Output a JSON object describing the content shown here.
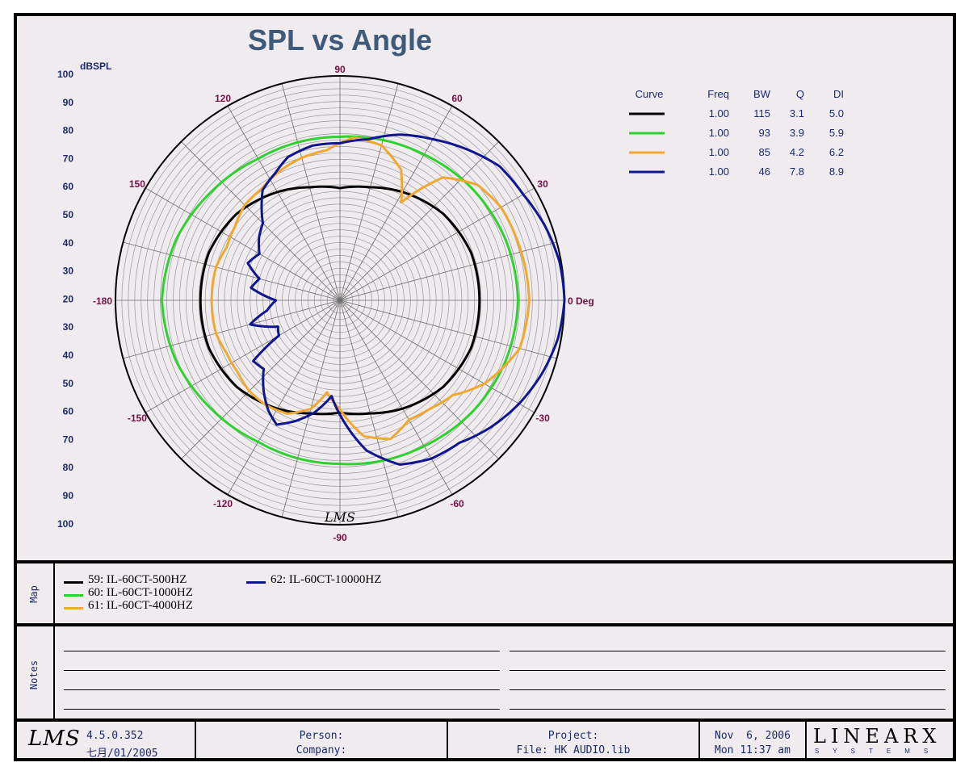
{
  "chart_data": {
    "type": "polar",
    "title": "SPL vs Angle",
    "radial_unit": "dBSPL",
    "radial_scale_labels": [
      "100",
      "90",
      "80",
      "70",
      "60",
      "50",
      "40",
      "30",
      "20",
      "30",
      "40",
      "50",
      "60",
      "70",
      "80",
      "90",
      "100"
    ],
    "angle_labels": [
      {
        "deg": 0,
        "text": "0 Deg"
      },
      {
        "deg": 30,
        "text": "30"
      },
      {
        "deg": 60,
        "text": "60"
      },
      {
        "deg": 90,
        "text": "90"
      },
      {
        "deg": 120,
        "text": "120"
      },
      {
        "deg": 150,
        "text": "150"
      },
      {
        "deg": 180,
        "text": "-180"
      },
      {
        "deg": -150,
        "text": "-150"
      },
      {
        "deg": -120,
        "text": "-120"
      },
      {
        "deg": -90,
        "text": "-90"
      },
      {
        "deg": -60,
        "text": "-60"
      },
      {
        "deg": -30,
        "text": "-30"
      }
    ],
    "table": {
      "headers": [
        "Curve",
        "Freq",
        "BW",
        "Q",
        "DI"
      ],
      "rows": [
        {
          "color": "#000000",
          "freq": "1.00",
          "bw": "115",
          "q": "3.1",
          "di": "5.0"
        },
        {
          "color": "#2fd12f",
          "freq": "1.00",
          "bw": "93",
          "q": "3.9",
          "di": "5.9"
        },
        {
          "color": "#f0a830",
          "freq": "1.00",
          "bw": "85",
          "q": "4.2",
          "di": "6.2"
        },
        {
          "color": "#10178e",
          "freq": "1.00",
          "bw": "46",
          "q": "7.8",
          "di": "8.9"
        }
      ]
    },
    "series": [
      {
        "name": "59: IL-60CT-500HZ",
        "color": "#000000",
        "angles": [
          0,
          20,
          40,
          60,
          75,
          90,
          105,
          120,
          140,
          160,
          180,
          200,
          220,
          240,
          255,
          270,
          285,
          300,
          320,
          340
        ],
        "values": [
          73.5,
          73.5,
          72,
          69,
          66.5,
          65,
          66.5,
          69,
          72,
          73.5,
          73.5,
          73.5,
          72,
          69,
          66.5,
          65,
          66.5,
          69,
          72,
          73.5
        ]
      },
      {
        "name": "60: IL-60CT-1000HZ",
        "color": "#2fd12f",
        "angles": [
          0,
          20,
          40,
          60,
          80,
          90,
          100,
          120,
          140,
          160,
          180,
          200,
          220,
          240,
          260,
          270,
          280,
          300,
          320,
          340
        ],
        "values": [
          85.5,
          85,
          84,
          82.5,
          81.5,
          81,
          81,
          81,
          82.5,
          84.5,
          85.5,
          84.5,
          82.5,
          81,
          81,
          81,
          81.5,
          82.5,
          84,
          85
        ]
      },
      {
        "name": "61: IL-60CT-4000HZ",
        "color": "#f0a830",
        "angles": [
          0,
          15,
          30,
          40,
          50,
          58,
          65,
          75,
          85,
          90,
          95,
          105,
          115,
          125,
          135,
          145,
          155,
          165,
          180,
          195,
          205,
          215,
          225,
          235,
          245,
          255,
          262,
          270,
          280,
          290,
          300,
          310,
          320,
          330,
          345
        ],
        "values": [
          89,
          88.5,
          88,
          86,
          80,
          66,
          75,
          80,
          81,
          79,
          77,
          76,
          74.5,
          72.5,
          72,
          70,
          69,
          70,
          70,
          70,
          69,
          69,
          70,
          70,
          69,
          65,
          59,
          64,
          73,
          76,
          73,
          74,
          76,
          82,
          88
        ]
      },
      {
        "name": "62: IL-60CT-10000HZ",
        "color": "#10178e",
        "angles": [
          0,
          10,
          20,
          30,
          40,
          50,
          60,
          70,
          80,
          90,
          100,
          110,
          117,
          125,
          135,
          142,
          150,
          158,
          165,
          172,
          180,
          188,
          195,
          203,
          210,
          215,
          222,
          230,
          237,
          243,
          250,
          257,
          265,
          272,
          280,
          290,
          300,
          310,
          320,
          330,
          340,
          350
        ],
        "values": [
          100,
          99.5,
          98,
          96,
          95,
          91.5,
          88,
          85,
          81,
          79,
          79,
          77.5,
          74.5,
          72,
          64,
          62,
          59,
          61,
          56,
          58,
          50,
          53,
          59,
          51,
          52,
          63,
          62,
          67,
          71,
          73.5,
          70,
          66,
          60,
          68,
          77.5,
          84.5,
          87,
          88,
          91.5,
          94.5,
          97,
          99
        ]
      }
    ]
  },
  "map_label": "Map",
  "notes_label": "Notes",
  "legend": [
    {
      "text": "59: IL-60CT-500HZ",
      "color": "#000000"
    },
    {
      "text": "60: IL-60CT-1000HZ",
      "color": "#2fd12f"
    },
    {
      "text": "61: IL-60CT-4000HZ",
      "color": "#f0a830"
    },
    {
      "text": "62: IL-60CT-10000HZ",
      "color": "#10178e"
    }
  ],
  "footer": {
    "logo": "LMS",
    "version": "4.5.0.352",
    "date": "七月/01/2005",
    "person_label": "Person:",
    "company_label": "Company:",
    "project_label": "Project:",
    "file_label": "File: HK AUDIO.lib",
    "date_line1": "Nov  6, 2006",
    "date_line2": "Mon 11:37 am",
    "brand_main": "LINEARX",
    "brand_sub": "SYSTEMS"
  },
  "plot_watermark": "LMS"
}
